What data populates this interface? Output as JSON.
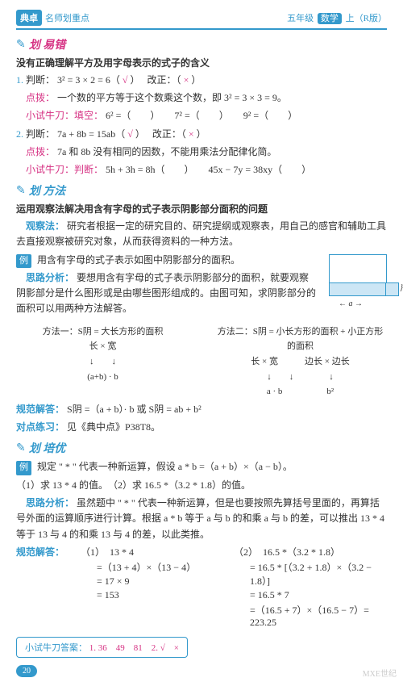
{
  "top": {
    "logo": "典卓",
    "brand": "名师划重点",
    "grade": "五年级",
    "subject": "数学",
    "vol": "上（R版）"
  },
  "sec1": {
    "icon": "✎",
    "title": "划 易错",
    "intro": "没有正确理解平方及用字母表示的式子的含义",
    "item1": {
      "num": "1.",
      "label": "判断：",
      "expr": "3² = 3 × 2 = 6（",
      "mark": "√",
      "close": "）",
      "fix_label": "改正：（",
      "fix_mark": "×",
      "fix_close": "）",
      "hint_label": "点拨：",
      "hint": "一个数的平方等于这个数乘这个数，即 3² = 3 × 3 = 9。",
      "try_label": "小试牛刀：填空：",
      "try": "6² =（　　）　　7² =（　　）　　9² =（　　）"
    },
    "item2": {
      "num": "2.",
      "label": "判断：",
      "expr": "7a + 8b = 15ab（",
      "mark": "√",
      "close": "）",
      "fix_label": "改正：（",
      "fix_mark": "×",
      "fix_close": "）",
      "hint_label": "点拨：",
      "hint": "7a 和 8b 没有相同的因数，不能用乘法分配律化简。",
      "try_label": "小试牛刀：判断：",
      "try": "5h + 3h = 8h（　　）　　45x − 7y = 38xy（　　）"
    }
  },
  "sec2": {
    "icon": "✎",
    "title": "划 方法",
    "intro": "运用观察法解决用含有字母的式子表示阴影部分面积的问题",
    "obs_label": "观察法：",
    "obs": "研究者根据一定的研究目的、研究提纲或观察表，用自己的感官和辅助工具去直接观察被研究对象，从而获得资料的一种方法。",
    "ex_label": "例",
    "ex": "用含有字母的式子表示如图中阴影部分的面积。",
    "analysis_label": "思路分析：",
    "analysis": "要想用含有字母的式子表示阴影部分的面积，就要观察阴影部分是什么图形或是由哪些图形组成的。由图可知，求阴影部分的面积可以用两种方法解答。",
    "m1": {
      "t": "方法一：S阴 = 大长方形的面积",
      "l1": "长 × 宽",
      "l2": "↓　　↓",
      "l3": "(a+b) · b"
    },
    "m2": {
      "t": "方法二：S阴 = 小长方形的面积 + 小正方形的面积",
      "l1": "长 × 宽　　　边长 × 边长",
      "l2": "↓　　↓　　　　↓",
      "l3": "a · b　　　　　b²"
    },
    "ans_label": "规范解答：",
    "ans": "S阴 =（a + b）· b 或 S阴 = ab + b²",
    "practice_label": "对点练习：",
    "practice": "见《典中点》P38T8。",
    "fig": {
      "a": "← a →",
      "b": "}b"
    }
  },
  "sec3": {
    "icon": "✎",
    "title": "划 培优",
    "ex_label": "例",
    "ex": "规定 \" * \" 代表一种新运算，假设 a * b =（a + b）×（a − b）。",
    "q": "（1）求 13 * 4 的值。　（2）求 16.5 *（3.2 * 1.8）的值。",
    "analysis_label": "思路分析：",
    "analysis": "虽然题中 \" * \" 代表一种新运算，但是也要按照先算括号里面的，再算括号外面的运算顺序进行计算。根据 a * b 等于 a 与 b 的和乘 a 与 b 的差，可以推出 13 * 4 等于 13 与 4 的和乘 13 与 4 的差，以此类推。",
    "ans_label": "规范解答：",
    "c1": {
      "h": "（1）　13 * 4",
      "l1": "=（13 + 4）×（13 − 4）",
      "l2": "= 17 × 9",
      "l3": "= 153"
    },
    "c2": {
      "h": "（2）　16.5 *（3.2 * 1.8）",
      "l1": "= 16.5 * [（3.2 + 1.8）×（3.2 − 1.8）]",
      "l2": "= 16.5 * 7",
      "l3": "=（16.5 + 7）×（16.5 − 7）= 223.25"
    }
  },
  "answerbox": {
    "label": "小试牛刀答案：",
    "a": "1. 36　49　81　2. √　×"
  },
  "pagenum": "20",
  "watermark": "MXE世纪"
}
